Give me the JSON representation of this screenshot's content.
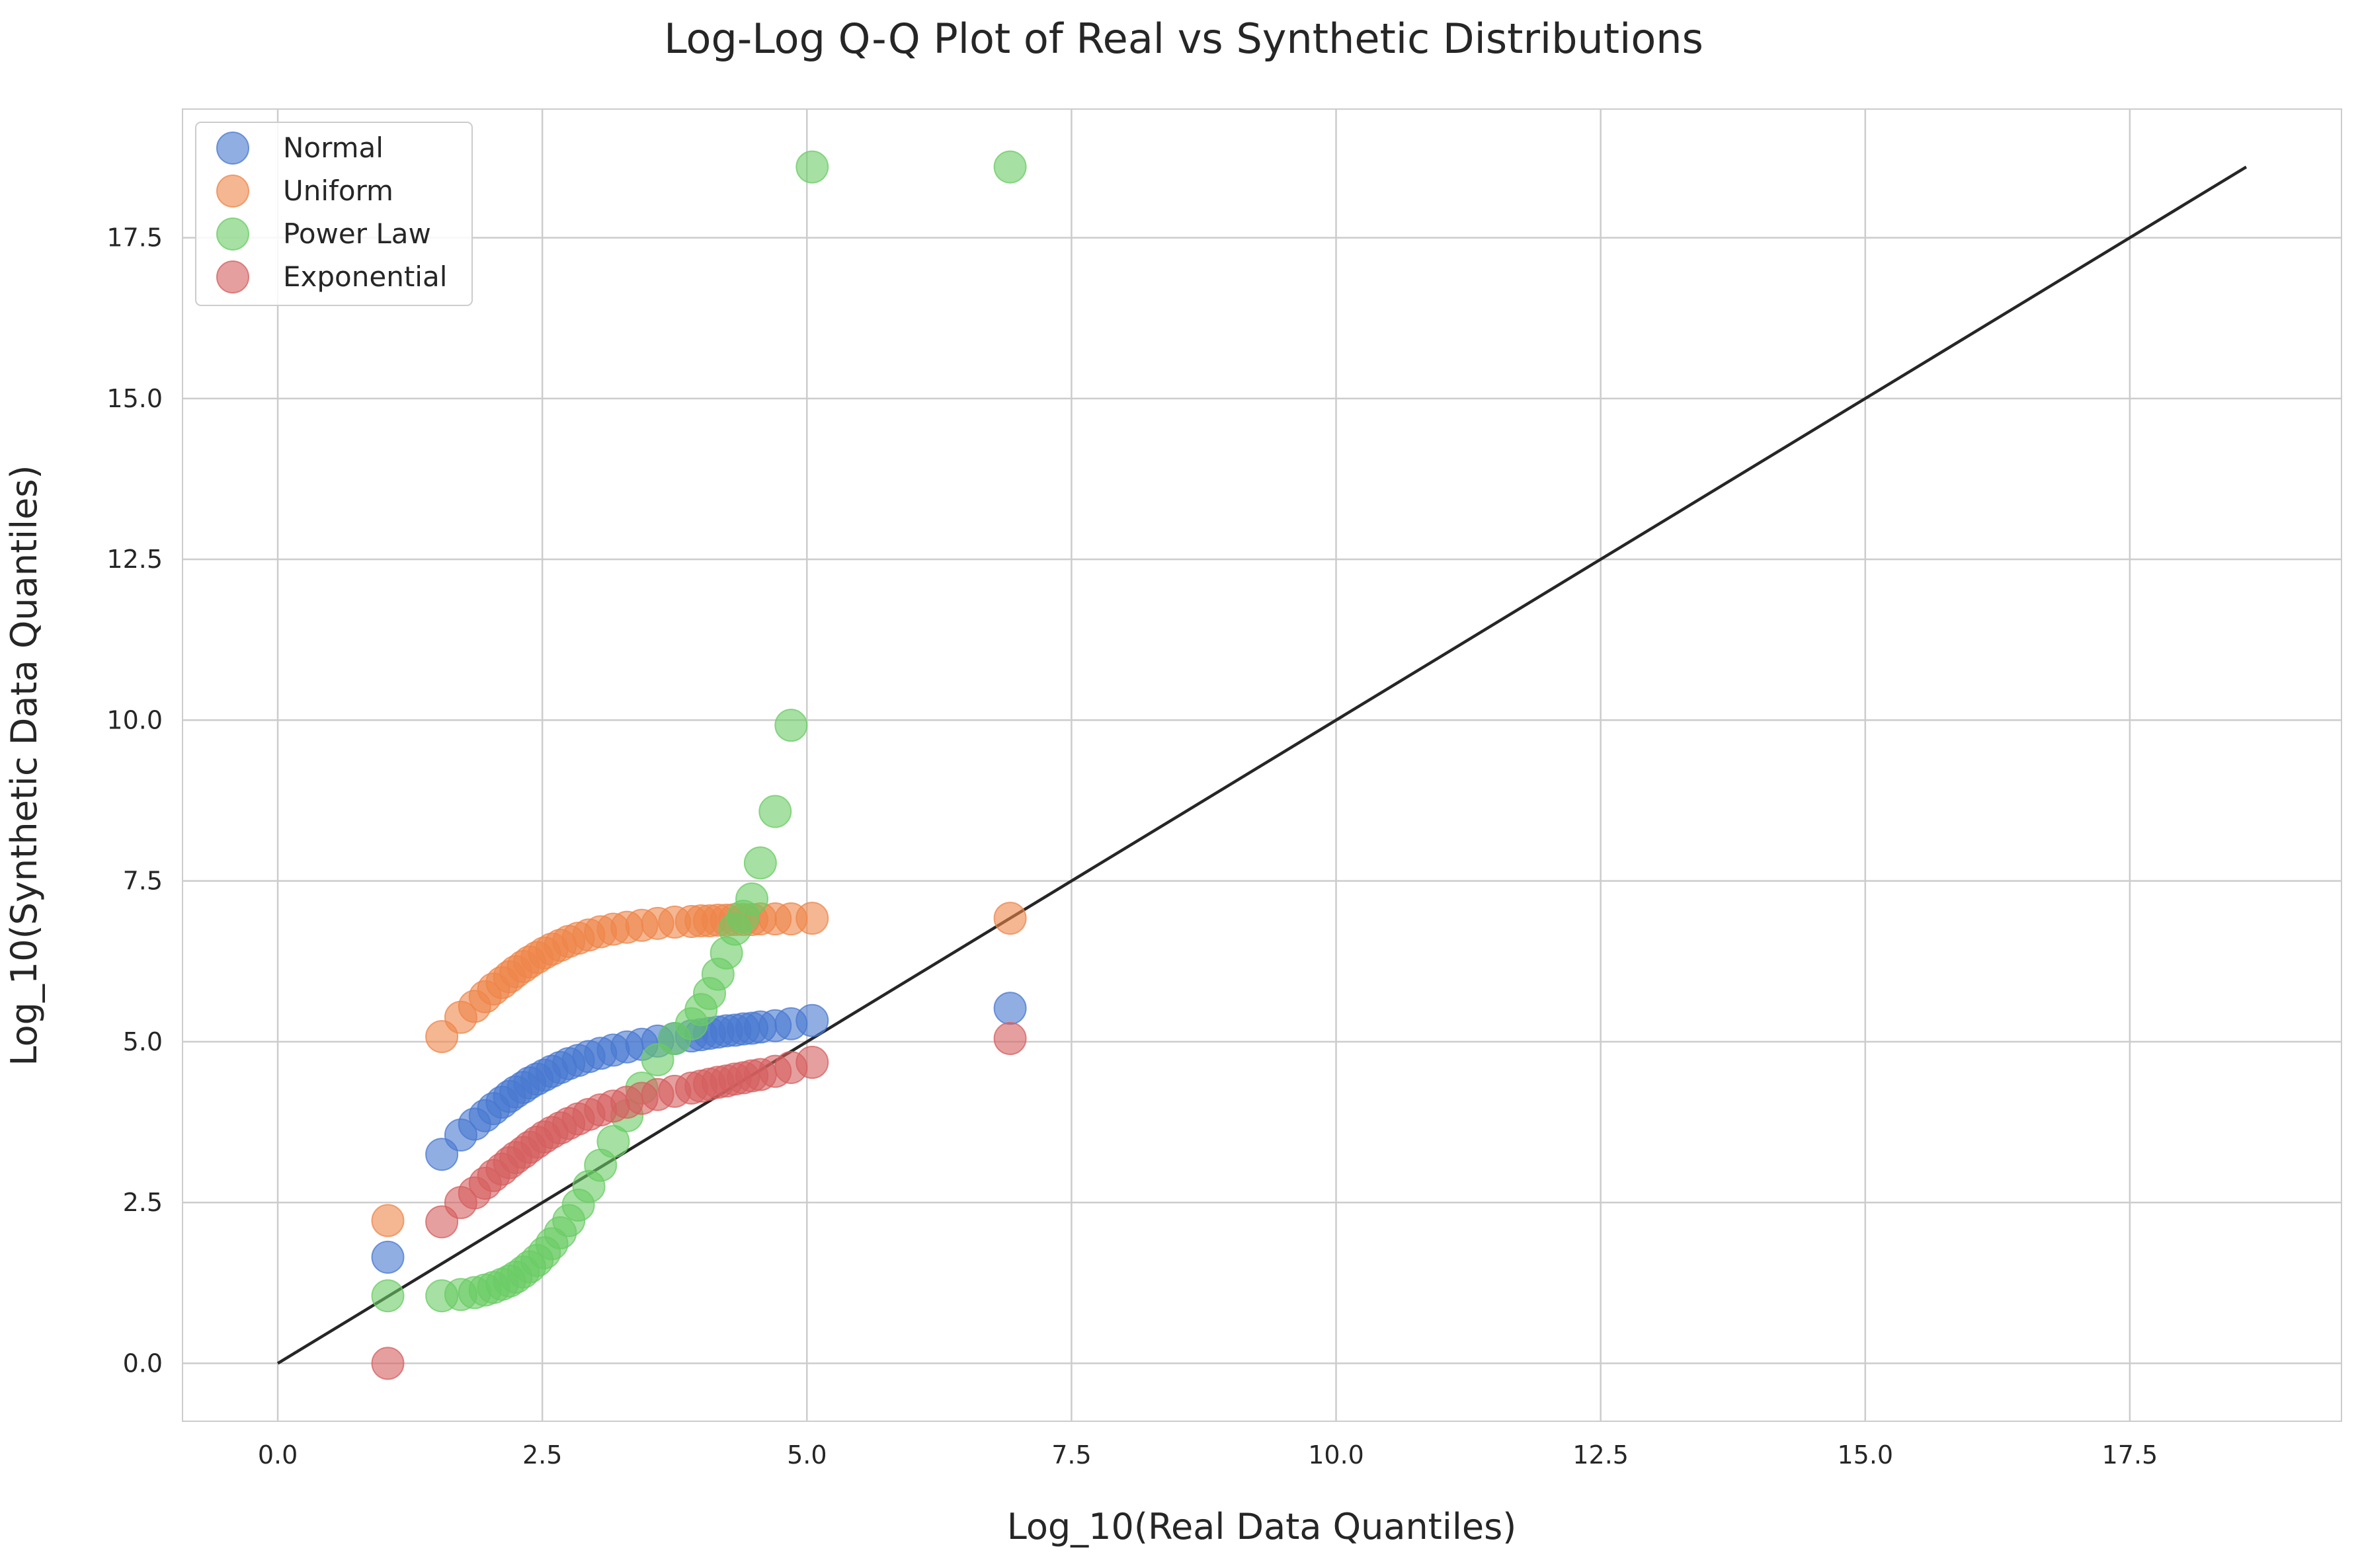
{
  "chart_data": {
    "type": "scatter",
    "title": "Log-Log Q-Q Plot of Real vs Synthetic Distributions",
    "xlabel": "Log_10(Real Data Quantiles)",
    "ylabel": "Log_10(Synthetic Data Quantiles)",
    "xlim": [
      -0.9,
      19.5
    ],
    "ylim": [
      -0.9,
      19.5
    ],
    "xticks": [
      0.0,
      2.5,
      5.0,
      7.5,
      10.0,
      12.5,
      15.0,
      17.5
    ],
    "yticks": [
      0.0,
      2.5,
      5.0,
      7.5,
      10.0,
      12.5,
      15.0,
      17.5
    ],
    "xtick_labels": [
      "0.0",
      "2.5",
      "5.0",
      "7.5",
      "10.0",
      "12.5",
      "15.0",
      "17.5"
    ],
    "ytick_labels": [
      "0.0",
      "2.5",
      "5.0",
      "7.5",
      "10.0",
      "12.5",
      "15.0",
      "17.5"
    ],
    "grid": true,
    "legend_position": "top-left",
    "reference_line": {
      "x": [
        0,
        18.6
      ],
      "y": [
        0,
        18.6
      ],
      "color": "#262626"
    },
    "real_quantiles": [
      1.04,
      1.55,
      1.73,
      1.86,
      1.96,
      2.04,
      2.12,
      2.19,
      2.25,
      2.32,
      2.38,
      2.45,
      2.52,
      2.59,
      2.67,
      2.75,
      2.84,
      2.94,
      3.05,
      3.17,
      3.3,
      3.44,
      3.59,
      3.75,
      3.91,
      4.0,
      4.08,
      4.16,
      4.24,
      4.32,
      4.4,
      4.48,
      4.56,
      4.7,
      4.85,
      5.05,
      6.92
    ],
    "series": [
      {
        "name": "Normal",
        "color": "#4878d0",
        "y": [
          1.65,
          3.25,
          3.55,
          3.72,
          3.85,
          3.96,
          4.06,
          4.15,
          4.22,
          4.29,
          4.36,
          4.42,
          4.48,
          4.54,
          4.6,
          4.66,
          4.71,
          4.77,
          4.82,
          4.87,
          4.92,
          4.96,
          5.01,
          5.05,
          5.09,
          5.11,
          5.13,
          5.15,
          5.17,
          5.18,
          5.2,
          5.21,
          5.23,
          5.25,
          5.28,
          5.33,
          5.52
        ]
      },
      {
        "name": "Uniform",
        "color": "#ee854a",
        "y": [
          2.22,
          5.08,
          5.38,
          5.55,
          5.7,
          5.82,
          5.92,
          6.01,
          6.09,
          6.17,
          6.24,
          6.31,
          6.38,
          6.44,
          6.5,
          6.56,
          6.61,
          6.66,
          6.71,
          6.75,
          6.78,
          6.81,
          6.84,
          6.86,
          6.87,
          6.88,
          6.88,
          6.89,
          6.89,
          6.9,
          6.9,
          6.9,
          6.91,
          6.91,
          6.91,
          6.92,
          6.92
        ]
      },
      {
        "name": "Power Law",
        "color": "#6acc64",
        "y": [
          1.05,
          1.05,
          1.07,
          1.1,
          1.14,
          1.18,
          1.23,
          1.28,
          1.34,
          1.42,
          1.5,
          1.6,
          1.72,
          1.86,
          2.03,
          2.22,
          2.46,
          2.75,
          3.08,
          3.45,
          3.85,
          4.28,
          4.72,
          5.05,
          5.28,
          5.5,
          5.75,
          6.05,
          6.38,
          6.75,
          6.95,
          7.22,
          7.78,
          8.58,
          9.92,
          18.6,
          18.6
        ]
      },
      {
        "name": "Exponential",
        "color": "#d65f5f",
        "y": [
          0.0,
          2.2,
          2.5,
          2.65,
          2.8,
          2.92,
          3.02,
          3.12,
          3.2,
          3.28,
          3.36,
          3.44,
          3.52,
          3.59,
          3.66,
          3.73,
          3.8,
          3.87,
          3.94,
          4.0,
          4.06,
          4.12,
          4.18,
          4.23,
          4.28,
          4.31,
          4.34,
          4.37,
          4.39,
          4.42,
          4.44,
          4.47,
          4.49,
          4.54,
          4.6,
          4.68,
          5.05
        ]
      }
    ]
  }
}
